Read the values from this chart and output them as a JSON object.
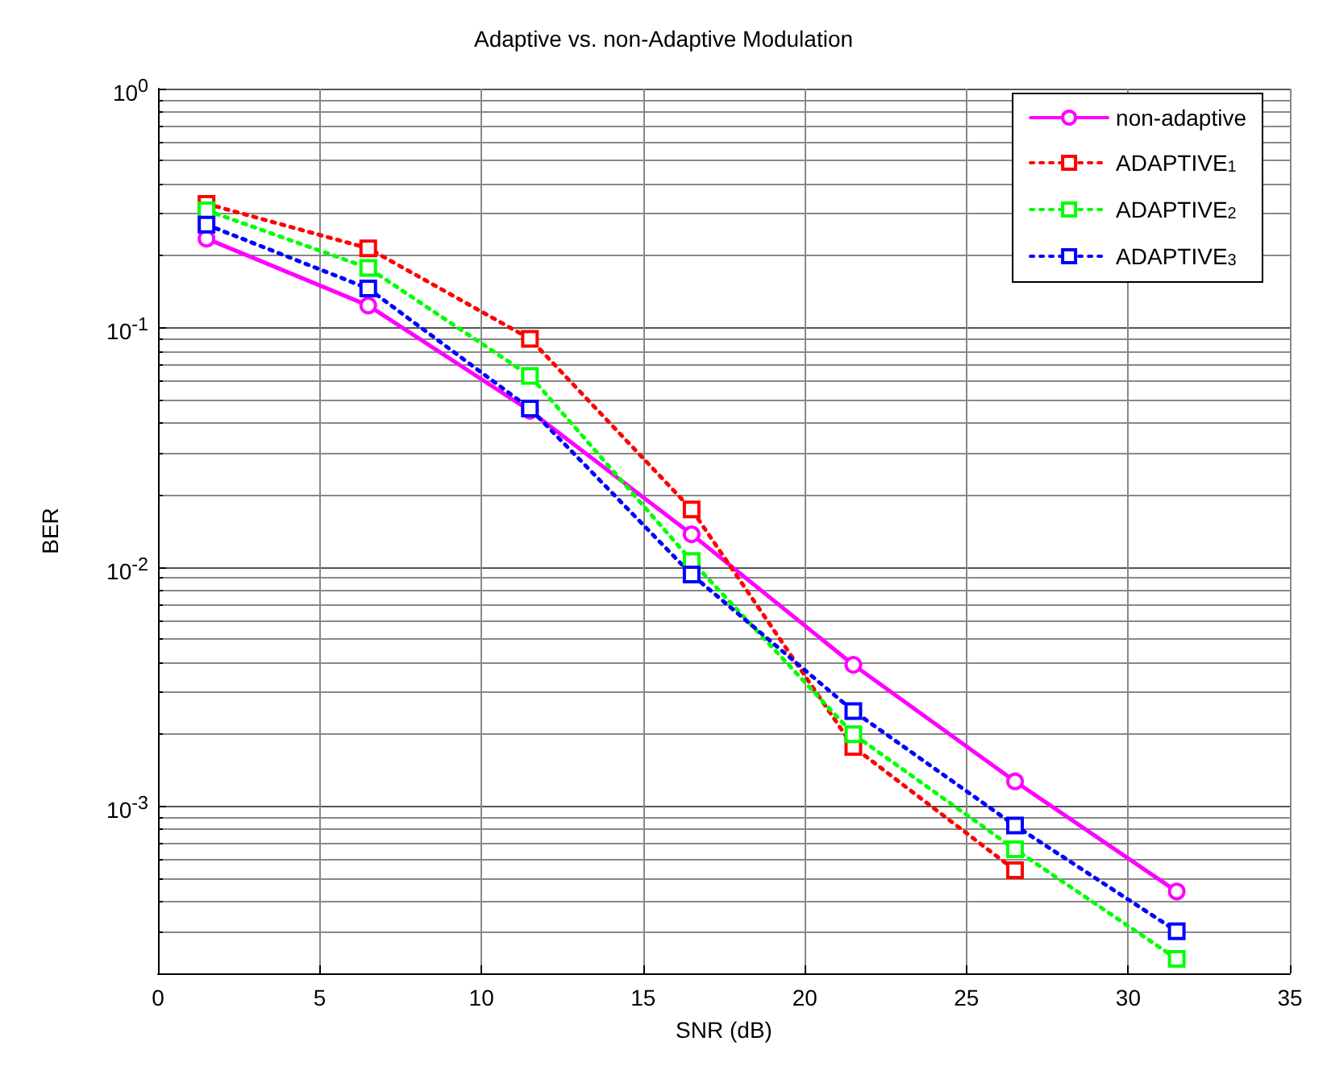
{
  "chart_data": {
    "type": "line",
    "title": "Adaptive vs. non-Adaptive Modulation",
    "xlabel": "SNR (dB)",
    "ylabel": "BER",
    "x": [
      1.5,
      6.5,
      11.5,
      16.5,
      21.5,
      26.5,
      31.5
    ],
    "series": [
      {
        "name": "non-adaptive",
        "color": "#ff00ff",
        "marker": "circle",
        "line_style": "solid",
        "values": [
          0.236,
          0.124,
          0.045,
          0.0137,
          0.0039,
          0.00127,
          0.00044
        ]
      },
      {
        "name": "ADAPTIVE$_{1}$",
        "color": "#ff0000",
        "marker": "square",
        "line_style": "dotted",
        "values": [
          0.33,
          0.215,
          0.09,
          0.0174,
          0.00177,
          0.00054,
          null
        ]
      },
      {
        "name": "ADAPTIVE$_{2}$",
        "color": "#00ff00",
        "marker": "square",
        "line_style": "dotted",
        "values": [
          0.31,
          0.178,
          0.063,
          0.0106,
          0.002,
          0.00066,
          0.00023
        ]
      },
      {
        "name": "ADAPTIVE$_{3}$",
        "color": "#0000ff",
        "marker": "square",
        "line_style": "dotted",
        "values": [
          0.27,
          0.146,
          0.046,
          0.0093,
          0.0025,
          0.00083,
          0.0003
        ]
      }
    ],
    "log": "y",
    "xlim": [
      0,
      35
    ],
    "xticks": [
      0,
      5,
      10,
      15,
      20,
      25,
      30,
      35
    ],
    "ylim": [
      0.0002,
      1
    ],
    "yticks": [
      {
        "value": 0.001,
        "label": "10$^{-3}$"
      },
      {
        "value": 0.01,
        "label": "10$^{-2}$"
      },
      {
        "value": 0.1,
        "label": "10$^{-1}$"
      },
      {
        "value": 1,
        "label": "10$^{0}$"
      }
    ],
    "grid": true,
    "legend": "top right"
  }
}
